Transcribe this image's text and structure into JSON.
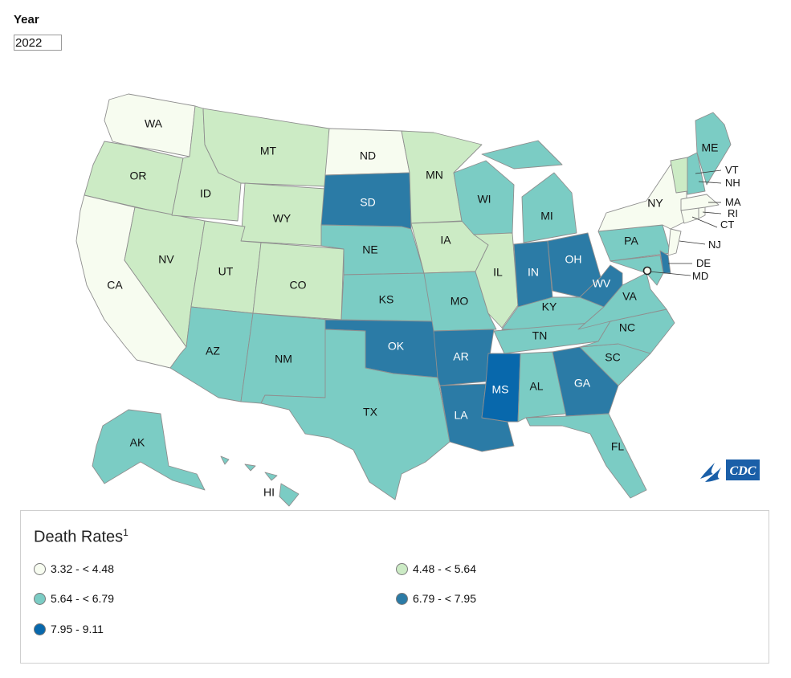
{
  "filter": {
    "label": "Year",
    "value": "2022"
  },
  "legend": {
    "title": "Death Rates",
    "footnote": "1",
    "classes": [
      {
        "range": "3.32 - < 4.48",
        "color": "#f7fcf0"
      },
      {
        "range": "4.48 - < 5.64",
        "color": "#ccebc5"
      },
      {
        "range": "5.64 - < 6.79",
        "color": "#7bccc4"
      },
      {
        "range": "6.79 - < 7.95",
        "color": "#2b7ba6"
      },
      {
        "range": "7.95 - 9.11",
        "color": "#0868ac"
      }
    ]
  },
  "states": {
    "WA": {
      "label": "WA",
      "class": 0
    },
    "OR": {
      "label": "OR",
      "class": 1
    },
    "CA": {
      "label": "CA",
      "class": 0
    },
    "NV": {
      "label": "NV",
      "class": 1
    },
    "ID": {
      "label": "ID",
      "class": 1
    },
    "MT": {
      "label": "MT",
      "class": 1
    },
    "WY": {
      "label": "WY",
      "class": 1
    },
    "UT": {
      "label": "UT",
      "class": 1
    },
    "CO": {
      "label": "CO",
      "class": 1
    },
    "AZ": {
      "label": "AZ",
      "class": 2
    },
    "NM": {
      "label": "NM",
      "class": 2
    },
    "ND": {
      "label": "ND",
      "class": 0
    },
    "SD": {
      "label": "SD",
      "class": 3
    },
    "NE": {
      "label": "NE",
      "class": 2
    },
    "KS": {
      "label": "KS",
      "class": 2
    },
    "OK": {
      "label": "OK",
      "class": 3
    },
    "TX": {
      "label": "TX",
      "class": 2
    },
    "MN": {
      "label": "MN",
      "class": 1
    },
    "IA": {
      "label": "IA",
      "class": 1
    },
    "MO": {
      "label": "MO",
      "class": 2
    },
    "AR": {
      "label": "AR",
      "class": 3
    },
    "LA": {
      "label": "LA",
      "class": 3
    },
    "WI": {
      "label": "WI",
      "class": 2
    },
    "IL": {
      "label": "IL",
      "class": 1
    },
    "MI": {
      "label": "MI",
      "class": 2
    },
    "IN": {
      "label": "IN",
      "class": 3
    },
    "OH": {
      "label": "OH",
      "class": 3
    },
    "KY": {
      "label": "KY",
      "class": 2
    },
    "TN": {
      "label": "TN",
      "class": 2
    },
    "MS": {
      "label": "MS",
      "class": 4
    },
    "AL": {
      "label": "AL",
      "class": 2
    },
    "GA": {
      "label": "GA",
      "class": 3
    },
    "FL": {
      "label": "FL",
      "class": 2
    },
    "SC": {
      "label": "SC",
      "class": 2
    },
    "NC": {
      "label": "NC",
      "class": 2
    },
    "VA": {
      "label": "VA",
      "class": 2
    },
    "WV": {
      "label": "WV",
      "class": 3
    },
    "PA": {
      "label": "PA",
      "class": 2
    },
    "NY": {
      "label": "NY",
      "class": 0
    },
    "ME": {
      "label": "ME",
      "class": 2
    },
    "VT": {
      "label": "VT",
      "class": 1
    },
    "NH": {
      "label": "NH",
      "class": 2
    },
    "MA": {
      "label": "MA",
      "class": 0
    },
    "RI": {
      "label": "RI",
      "class": 0
    },
    "CT": {
      "label": "CT",
      "class": 0
    },
    "NJ": {
      "label": "NJ",
      "class": 0
    },
    "DE": {
      "label": "DE",
      "class": 3
    },
    "MD": {
      "label": "MD",
      "class": 2
    },
    "DC": {
      "label": "",
      "class": 0
    },
    "AK": {
      "label": "AK",
      "class": 2
    },
    "HI": {
      "label": "HI",
      "class": 2
    }
  },
  "logo": {
    "icon": "hhs-eagle-icon",
    "text": "CDC"
  }
}
